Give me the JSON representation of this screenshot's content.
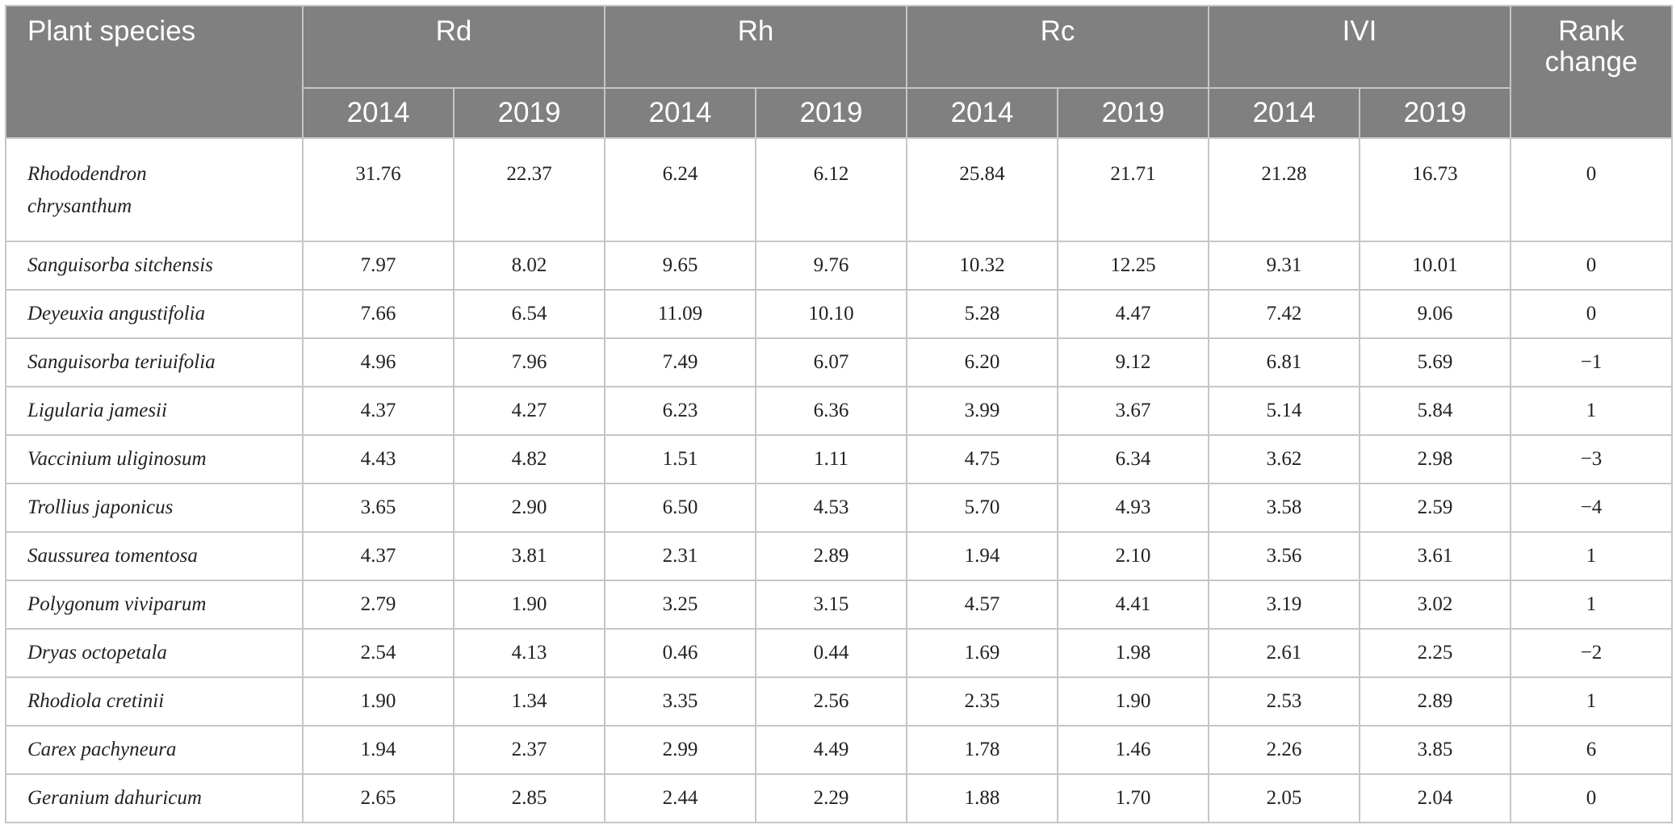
{
  "header": {
    "species": "Plant species",
    "groups": [
      "Rd",
      "Rh",
      "Rc",
      "IVI"
    ],
    "years": [
      "2014",
      "2019"
    ],
    "rank_change": "Rank change"
  },
  "rows": [
    {
      "species": "Rhododendron chrysanthum",
      "v": [
        "31.76",
        "22.37",
        "6.24",
        "6.12",
        "25.84",
        "21.71",
        "21.28",
        "16.73",
        "0"
      ]
    },
    {
      "species": "Sanguisorba sitchensis",
      "v": [
        "7.97",
        "8.02",
        "9.65",
        "9.76",
        "10.32",
        "12.25",
        "9.31",
        "10.01",
        "0"
      ]
    },
    {
      "species": "Deyeuxia angustifolia",
      "v": [
        "7.66",
        "6.54",
        "11.09",
        "10.10",
        "5.28",
        "4.47",
        "7.42",
        "9.06",
        "0"
      ]
    },
    {
      "species": "Sanguisorba teriuifolia",
      "v": [
        "4.96",
        "7.96",
        "7.49",
        "6.07",
        "6.20",
        "9.12",
        "6.81",
        "5.69",
        "−1"
      ]
    },
    {
      "species": "Ligularia jamesii",
      "v": [
        "4.37",
        "4.27",
        "6.23",
        "6.36",
        "3.99",
        "3.67",
        "5.14",
        "5.84",
        "1"
      ]
    },
    {
      "species": "Vaccinium uliginosum",
      "v": [
        "4.43",
        "4.82",
        "1.51",
        "1.11",
        "4.75",
        "6.34",
        "3.62",
        "2.98",
        "−3"
      ]
    },
    {
      "species": "Trollius japonicus",
      "v": [
        "3.65",
        "2.90",
        "6.50",
        "4.53",
        "5.70",
        "4.93",
        "3.58",
        "2.59",
        "−4"
      ]
    },
    {
      "species": "Saussurea tomentosa",
      "v": [
        "4.37",
        "3.81",
        "2.31",
        "2.89",
        "1.94",
        "2.10",
        "3.56",
        "3.61",
        "1"
      ]
    },
    {
      "species": "Polygonum viviparum",
      "v": [
        "2.79",
        "1.90",
        "3.25",
        "3.15",
        "4.57",
        "4.41",
        "3.19",
        "3.02",
        "1"
      ]
    },
    {
      "species": "Dryas octopetala",
      "v": [
        "2.54",
        "4.13",
        "0.46",
        "0.44",
        "1.69",
        "1.98",
        "2.61",
        "2.25",
        "−2"
      ]
    },
    {
      "species": "Rhodiola cretinii",
      "v": [
        "1.90",
        "1.34",
        "3.35",
        "2.56",
        "2.35",
        "1.90",
        "2.53",
        "2.89",
        "1"
      ]
    },
    {
      "species": "Carex pachyneura",
      "v": [
        "1.94",
        "2.37",
        "2.99",
        "4.49",
        "1.78",
        "1.46",
        "2.26",
        "3.85",
        "6"
      ]
    },
    {
      "species": "Geranium dahuricum",
      "v": [
        "2.65",
        "2.85",
        "2.44",
        "2.29",
        "1.88",
        "1.70",
        "2.05",
        "2.04",
        "0"
      ]
    }
  ]
}
